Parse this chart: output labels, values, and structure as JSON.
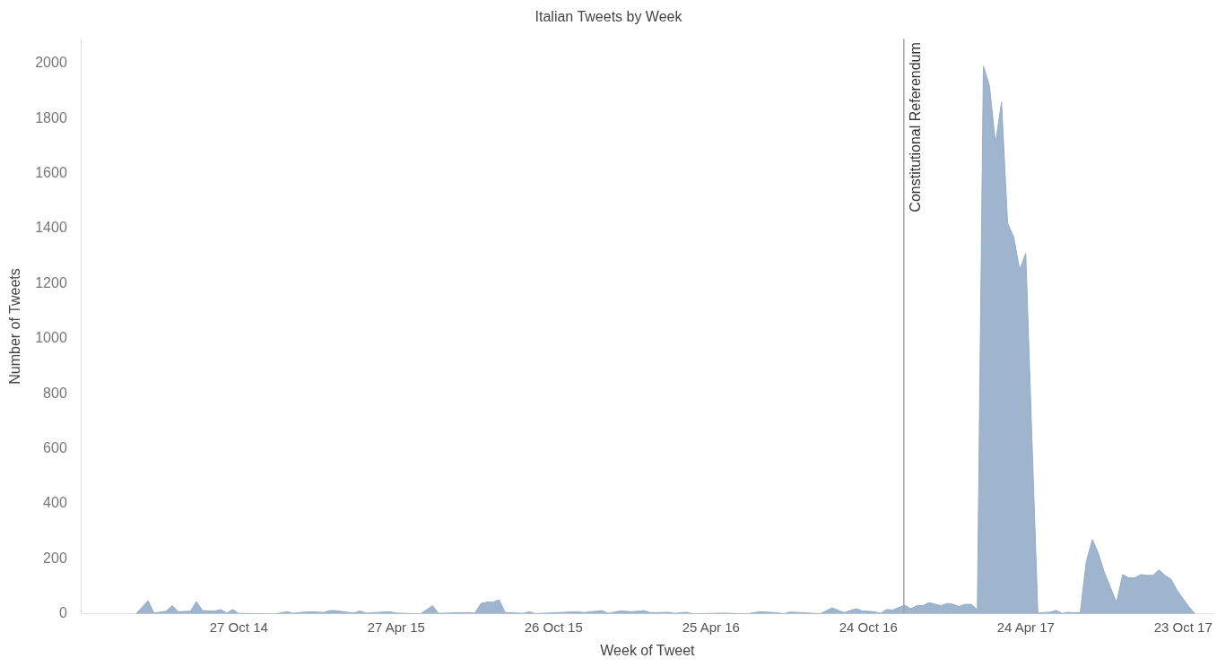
{
  "chart_data": {
    "type": "area",
    "title": "Italian Tweets by Week",
    "xlabel": "Week of Tweet",
    "ylabel": "Number of Tweets",
    "x": [
      "2014-06-30",
      "2014-07-14",
      "2014-07-21",
      "2014-08-04",
      "2014-08-11",
      "2014-08-18",
      "2014-09-01",
      "2014-09-08",
      "2014-09-15",
      "2014-09-29",
      "2014-10-06",
      "2014-10-13",
      "2014-10-20",
      "2014-10-27",
      "2014-12-08",
      "2014-12-22",
      "2014-12-29",
      "2015-01-05",
      "2015-01-19",
      "2015-02-02",
      "2015-02-09",
      "2015-02-16",
      "2015-03-09",
      "2015-03-16",
      "2015-03-23",
      "2015-04-20",
      "2015-04-27",
      "2015-05-25",
      "2015-06-08",
      "2015-06-15",
      "2015-07-20",
      "2015-07-27",
      "2015-08-03",
      "2015-08-10",
      "2015-08-17",
      "2015-08-24",
      "2015-08-31",
      "2015-09-21",
      "2015-09-28",
      "2015-10-05",
      "2015-11-23",
      "2015-11-30",
      "2015-12-21",
      "2015-12-28",
      "2016-01-11",
      "2016-01-25",
      "2016-02-08",
      "2016-02-15",
      "2016-03-07",
      "2016-03-14",
      "2016-03-28",
      "2016-04-04",
      "2016-05-09",
      "2016-06-06",
      "2016-06-20",
      "2016-07-11",
      "2016-07-18",
      "2016-07-25",
      "2016-08-22",
      "2016-08-29",
      "2016-09-12",
      "2016-09-26",
      "2016-10-10",
      "2016-10-17",
      "2016-10-31",
      "2016-11-07",
      "2016-11-14",
      "2016-11-21",
      "2016-12-05",
      "2016-12-12",
      "2016-12-19",
      "2016-12-26",
      "2017-01-02",
      "2017-01-16",
      "2017-01-23",
      "2017-01-30",
      "2017-02-06",
      "2017-02-13",
      "2017-02-20",
      "2017-02-27",
      "2017-03-06",
      "2017-03-13",
      "2017-03-20",
      "2017-03-27",
      "2017-04-03",
      "2017-04-10",
      "2017-04-17",
      "2017-04-24",
      "2017-05-01",
      "2017-05-08",
      "2017-05-15",
      "2017-05-22",
      "2017-05-29",
      "2017-06-05",
      "2017-06-12",
      "2017-06-19",
      "2017-06-26",
      "2017-07-03",
      "2017-07-10",
      "2017-07-17",
      "2017-07-24",
      "2017-07-31",
      "2017-08-07",
      "2017-08-14",
      "2017-08-21",
      "2017-08-28",
      "2017-09-04",
      "2017-09-11",
      "2017-09-18",
      "2017-09-25",
      "2017-10-02",
      "2017-10-09",
      "2017-10-16",
      "2017-10-23",
      "2017-10-30",
      "2017-11-06"
    ],
    "series": [
      {
        "color": "#94adc8",
        "values": [
          0,
          48,
          3,
          10,
          30,
          8,
          10,
          45,
          12,
          10,
          16,
          3,
          16,
          2,
          0,
          8,
          2,
          5,
          8,
          5,
          12,
          12,
          3,
          11,
          3,
          8,
          3,
          0,
          30,
          2,
          5,
          3,
          38,
          43,
          43,
          51,
          5,
          2,
          8,
          1,
          8,
          5,
          12,
          2,
          11,
          8,
          12,
          4,
          6,
          2,
          6,
          0,
          3,
          0,
          8,
          4,
          0,
          7,
          2,
          0,
          22,
          5,
          19,
          11,
          8,
          2,
          16,
          14,
          32,
          19,
          30,
          30,
          41,
          30,
          38,
          35,
          27,
          35,
          35,
          15,
          1990,
          1920,
          1710,
          1860,
          1420,
          1370,
          1250,
          1310,
          650,
          3,
          5,
          6,
          13,
          2,
          6,
          4,
          4,
          190,
          270,
          220,
          150,
          96,
          41,
          143,
          131,
          131,
          143,
          140,
          140,
          160,
          140,
          126,
          86,
          55,
          25,
          0
        ]
      }
    ],
    "xlim": [
      "2014-04-28",
      "2017-11-27"
    ],
    "xticks": [
      {
        "value": "2014-10-27",
        "label": "27 Oct 14"
      },
      {
        "value": "2015-04-27",
        "label": "27 Apr 15"
      },
      {
        "value": "2015-10-26",
        "label": "26 Oct 15"
      },
      {
        "value": "2016-04-25",
        "label": "25 Apr 16"
      },
      {
        "value": "2016-10-24",
        "label": "24 Oct 16"
      },
      {
        "value": "2017-04-24",
        "label": "24 Apr 17"
      },
      {
        "value": "2017-10-23",
        "label": "23 Oct 17"
      }
    ],
    "ylim": [
      0,
      2090
    ],
    "yticks": [
      0,
      200,
      400,
      600,
      800,
      1000,
      1200,
      1400,
      1600,
      1800,
      2000
    ],
    "ref_lines": [
      {
        "axis": "x",
        "value": "2016-12-04",
        "label": "Constitutional Referendum",
        "color": "#a6a6a6"
      }
    ],
    "grid": false,
    "legend": false
  }
}
